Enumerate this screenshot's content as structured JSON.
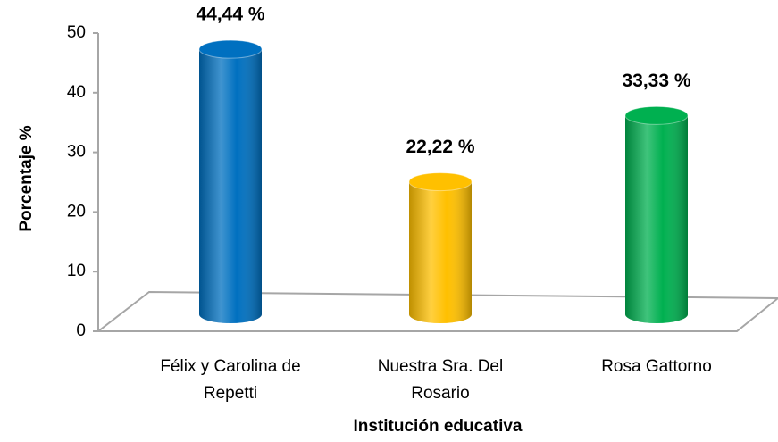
{
  "chart_data": {
    "type": "bar",
    "categories": [
      "Félix y Carolina de Repetti",
      "Nuestra Sra. Del Rosario",
      "Rosa Gattorno"
    ],
    "series": [
      {
        "name": "Porcentaje",
        "colors": [
          "#0070c0",
          "#ffc000",
          "#00b050"
        ],
        "values": [
          44.44,
          22.22,
          33.33
        ],
        "value_labels": [
          "44,44 %",
          "22,22 %",
          "33,33 %"
        ]
      }
    ],
    "ylabel": "Porcentaje %",
    "xlabel": "Institución educativa",
    "ylim": [
      0,
      50
    ],
    "yticks": [
      0,
      10,
      20,
      30,
      40,
      50
    ],
    "grid": false
  }
}
